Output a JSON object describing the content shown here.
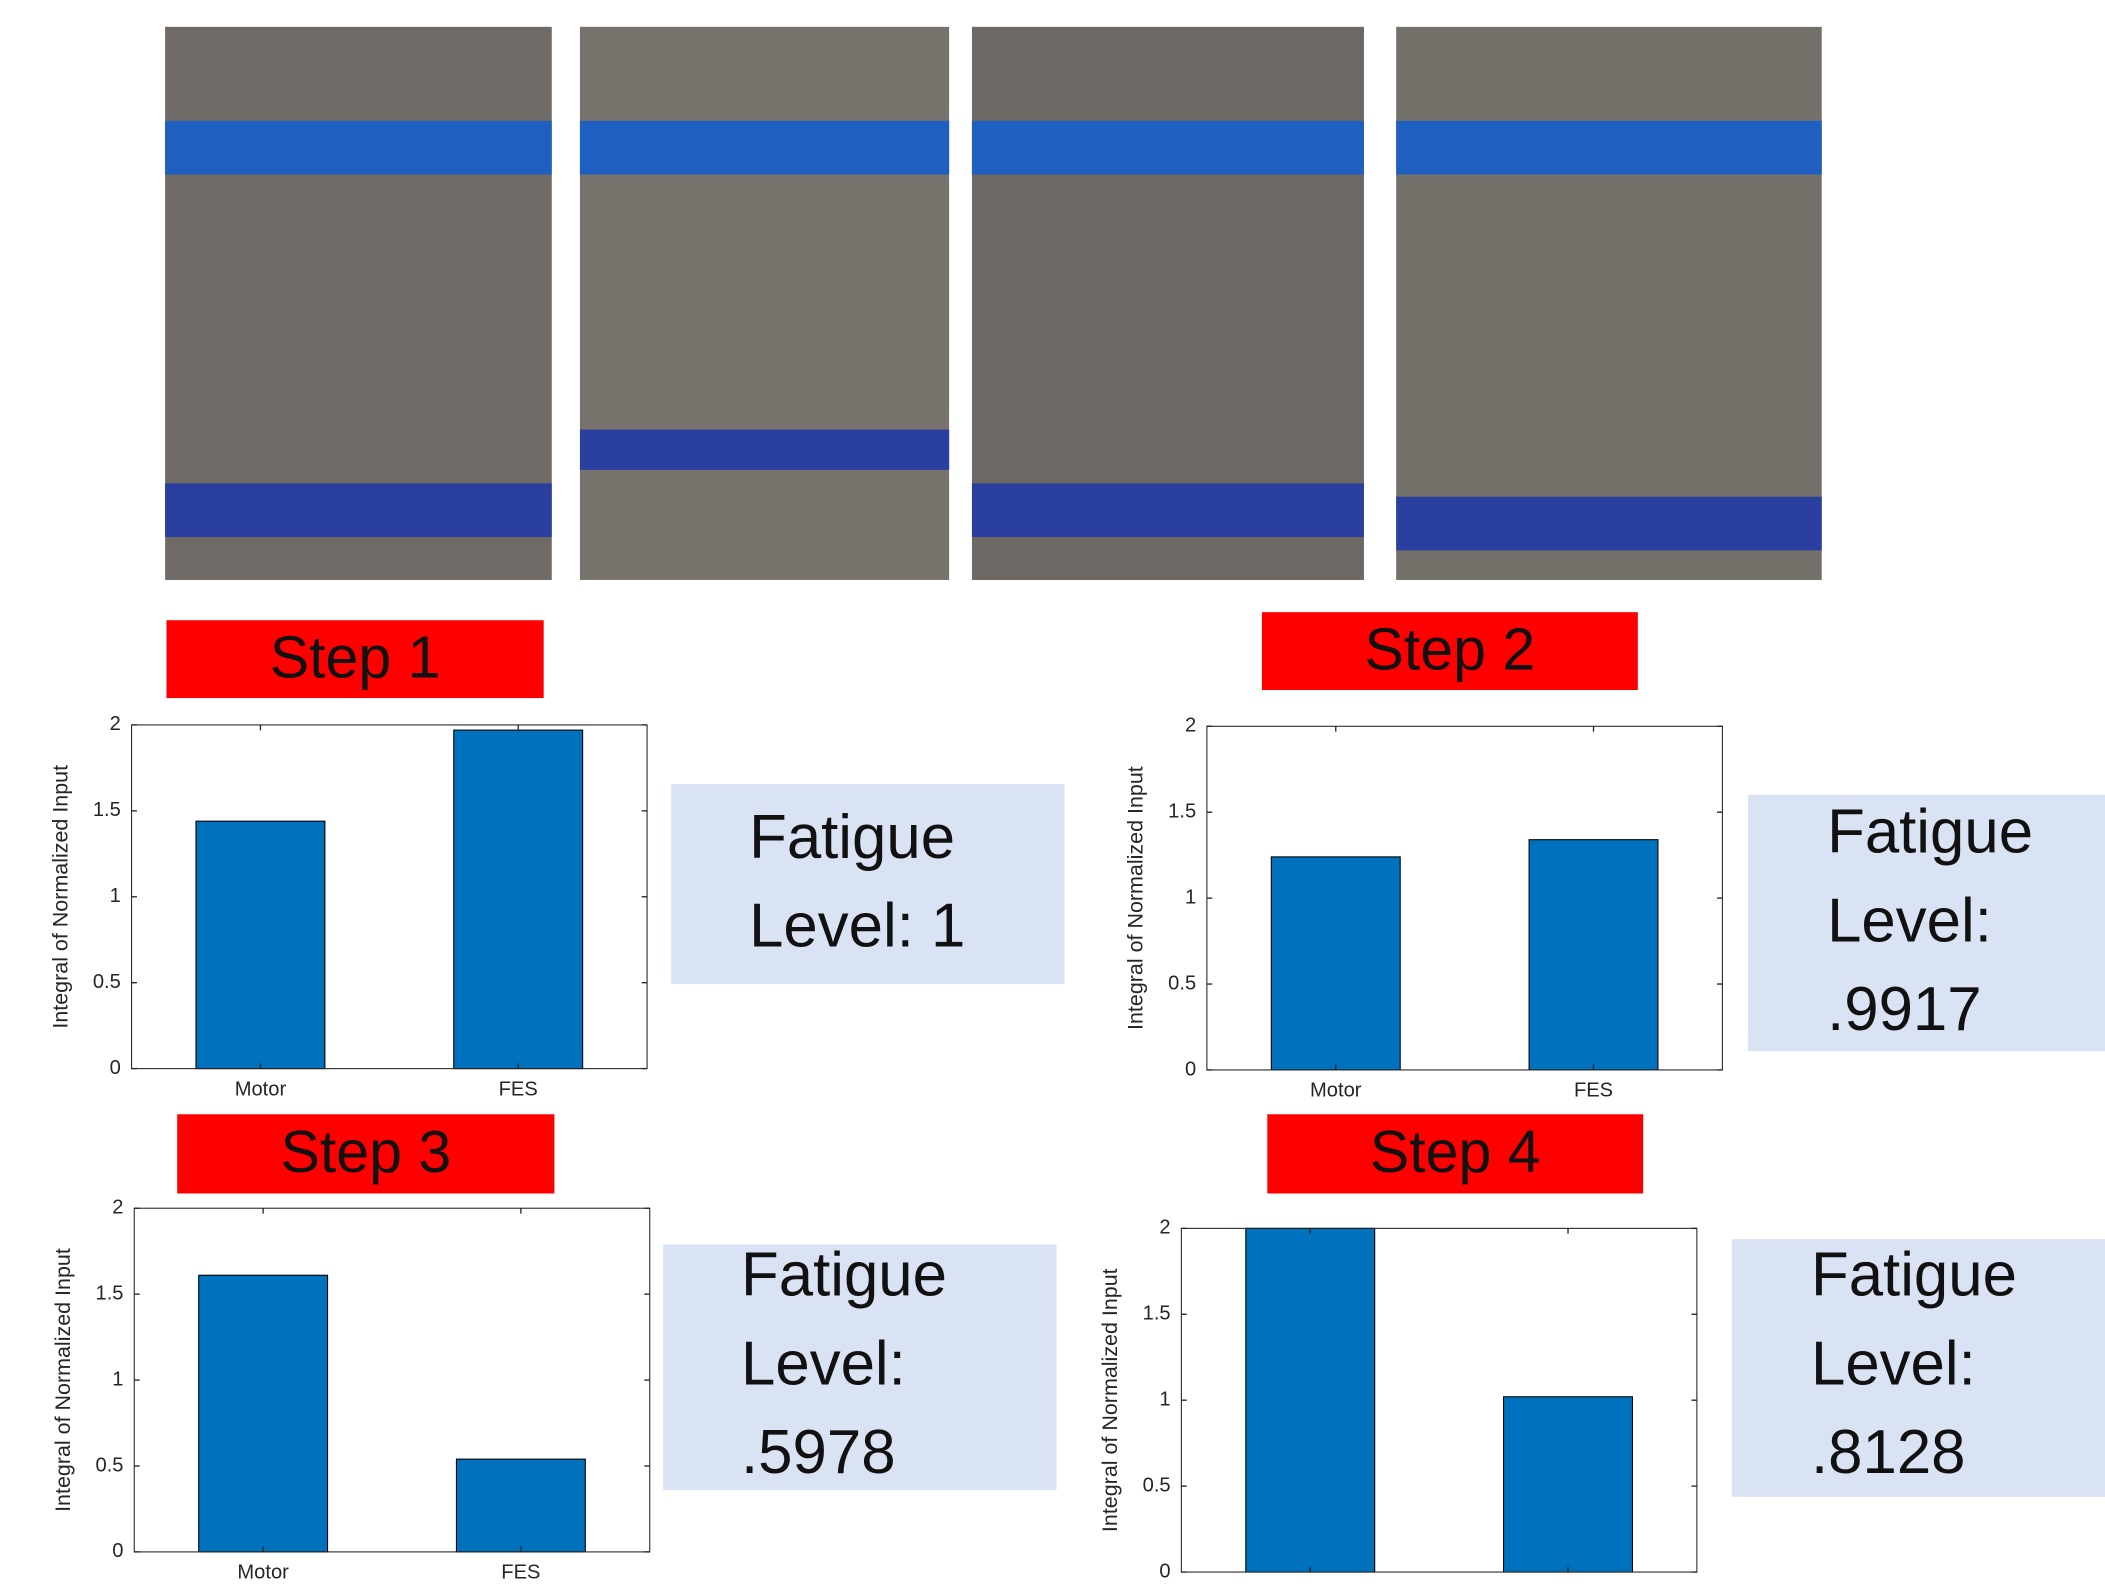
{
  "chart_data": [
    {
      "type": "bar",
      "title": "Step 1",
      "annotation": [
        "Fatigue",
        "Level: 1"
      ],
      "ylabel": "Integral of Normalized Input",
      "categories": [
        "Motor",
        "FES"
      ],
      "values": [
        1.44,
        1.97
      ],
      "color": "#0072bd",
      "ylim": [
        0,
        2
      ],
      "yticks": [
        0,
        0.5,
        1,
        1.5,
        2
      ]
    },
    {
      "type": "bar",
      "title": "Step 2",
      "annotation": [
        "Fatigue",
        "Level:",
        ".9917"
      ],
      "ylabel": "Integral of Normalized Input",
      "categories": [
        "Motor",
        "FES"
      ],
      "values": [
        1.24,
        1.34
      ],
      "color": "#0072bd",
      "ylim": [
        0,
        2
      ],
      "yticks": [
        0,
        0.5,
        1,
        1.5,
        2
      ]
    },
    {
      "type": "bar",
      "title": "Step 3",
      "annotation": [
        "Fatigue",
        "Level:",
        ".5978"
      ],
      "ylabel": "Integral of Normalized Input",
      "categories": [
        "Motor",
        "FES"
      ],
      "values": [
        1.61,
        0.54
      ],
      "color": "#0072bd",
      "ylim": [
        0,
        2
      ],
      "yticks": [
        0,
        0.5,
        1,
        1.5,
        2
      ]
    },
    {
      "type": "bar",
      "title": "Step 4",
      "annotation": [
        "Fatigue",
        "Level:",
        ".8128"
      ],
      "ylabel": "Integral of Normalized Input",
      "categories": [
        null,
        null
      ],
      "values": [
        2.0,
        1.02
      ],
      "color": "#0072bd",
      "ylim": [
        0,
        2
      ],
      "yticks": [
        0,
        0.5,
        1,
        1.5,
        2
      ]
    }
  ]
}
